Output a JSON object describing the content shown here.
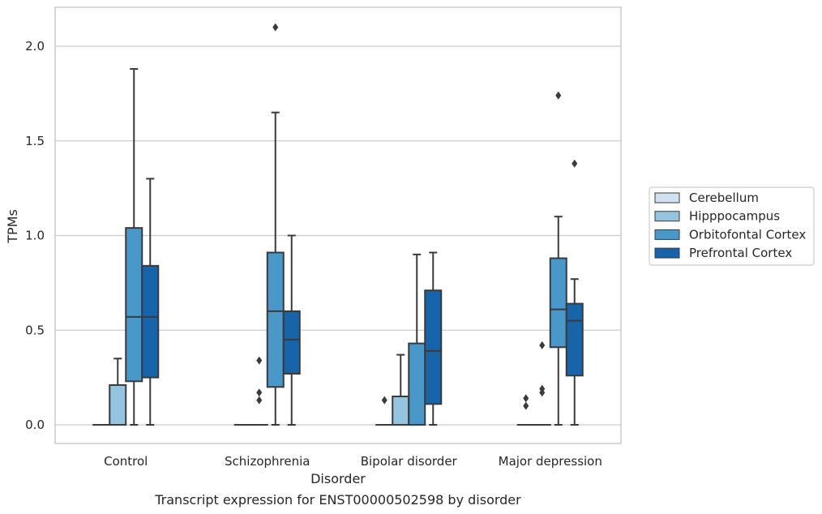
{
  "chart_data": {
    "type": "box",
    "caption": "Transcript expression for ENST00000502598 by disorder",
    "xlabel": "Disorder",
    "ylabel": "TPMs",
    "ylim": [
      -0.1,
      2.22
    ],
    "yticks": [
      0.0,
      0.5,
      1.0,
      1.5,
      2.0
    ],
    "ytick_labels": [
      "0.0",
      "0.5",
      "1.0",
      "1.5",
      "2.0"
    ],
    "grid": "horizontal",
    "legend_position": "right",
    "categories": [
      "Control",
      "Schizophrenia",
      "Bipolar disorder",
      "Major depression"
    ],
    "series": [
      {
        "name": "Cerebellum",
        "color": "#d0e1f2",
        "boxes": [
          {
            "q1": 0,
            "median": 0,
            "q3": 0,
            "whisker_low": 0,
            "whisker_high": 0,
            "outliers": []
          },
          {
            "q1": 0,
            "median": 0,
            "q3": 0,
            "whisker_low": 0,
            "whisker_high": 0,
            "outliers": []
          },
          {
            "q1": 0,
            "median": 0,
            "q3": 0,
            "whisker_low": 0,
            "whisker_high": 0,
            "outliers": [
              0.13
            ]
          },
          {
            "q1": 0,
            "median": 0,
            "q3": 0,
            "whisker_low": 0,
            "whisker_high": 0,
            "outliers": [
              0.1,
              0.14
            ]
          }
        ]
      },
      {
        "name": "Hipppocampus",
        "color": "#94c4df",
        "boxes": [
          {
            "q1": 0,
            "median": 0,
            "q3": 0.21,
            "whisker_low": 0,
            "whisker_high": 0.35,
            "outliers": []
          },
          {
            "q1": 0,
            "median": 0,
            "q3": 0,
            "whisker_low": 0,
            "whisker_high": 0,
            "outliers": [
              0.13,
              0.17,
              0.34
            ]
          },
          {
            "q1": 0,
            "median": 0,
            "q3": 0.15,
            "whisker_low": 0,
            "whisker_high": 0.37,
            "outliers": []
          },
          {
            "q1": 0,
            "median": 0,
            "q3": 0,
            "whisker_low": 0,
            "whisker_high": 0,
            "outliers": [
              0.17,
              0.19,
              0.42
            ]
          }
        ]
      },
      {
        "name": "Orbitofontal Cortex",
        "color": "#4a98c9",
        "boxes": [
          {
            "q1": 0.23,
            "median": 0.57,
            "q3": 1.04,
            "whisker_low": 0,
            "whisker_high": 1.88,
            "outliers": []
          },
          {
            "q1": 0.2,
            "median": 0.6,
            "q3": 0.91,
            "whisker_low": 0,
            "whisker_high": 1.65,
            "outliers": [
              2.1
            ]
          },
          {
            "q1": 0,
            "median": 0,
            "q3": 0.43,
            "whisker_low": 0,
            "whisker_high": 0.9,
            "outliers": []
          },
          {
            "q1": 0.41,
            "median": 0.61,
            "q3": 0.88,
            "whisker_low": 0,
            "whisker_high": 1.1,
            "outliers": [
              1.74
            ]
          }
        ]
      },
      {
        "name": "Prefrontal Cortex",
        "color": "#1764ab",
        "boxes": [
          {
            "q1": 0.25,
            "median": 0.57,
            "q3": 0.84,
            "whisker_low": 0,
            "whisker_high": 1.3,
            "outliers": []
          },
          {
            "q1": 0.27,
            "median": 0.45,
            "q3": 0.6,
            "whisker_low": 0,
            "whisker_high": 1.0,
            "outliers": []
          },
          {
            "q1": 0.11,
            "median": 0.39,
            "q3": 0.71,
            "whisker_low": 0,
            "whisker_high": 0.91,
            "outliers": []
          },
          {
            "q1": 0.26,
            "median": 0.55,
            "q3": 0.64,
            "whisker_low": 0,
            "whisker_high": 0.77,
            "outliers": [
              1.38
            ]
          }
        ]
      }
    ]
  }
}
